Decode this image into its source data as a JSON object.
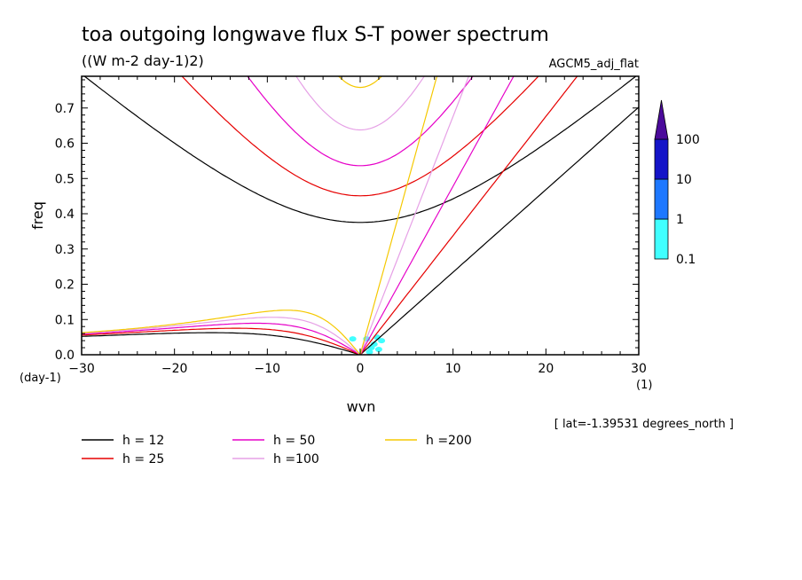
{
  "chart_data": {
    "type": "line",
    "title": "toa outgoing longwave flux S-T power spectrum",
    "subtitle": "((W m-2 day-1)2)",
    "model_label": "AGCM5_adj_flat",
    "xlabel": "wvn",
    "ylabel": "freq",
    "x_unit_label": "(1)",
    "y_unit_label": "(day-1)",
    "xlim": [
      -30,
      30
    ],
    "ylim": [
      0,
      0.79
    ],
    "x_ticks": [
      "-30",
      "-20",
      "-10",
      "0",
      "10",
      "20",
      "30"
    ],
    "y_ticks": [
      "0.0",
      "0.1",
      "0.2",
      "0.3",
      "0.4",
      "0.5",
      "0.6",
      "0.7"
    ],
    "annotation": "[ lat=-1.39531 degrees_north ]",
    "grid": false,
    "legend_position": "bottom-left",
    "series": [
      {
        "name": "h = 12",
        "color": "#000000",
        "equivalent_depth": 12
      },
      {
        "name": "h = 25",
        "color": "#e60000",
        "equivalent_depth": 25
      },
      {
        "name": "h = 50",
        "color": "#e600c8",
        "equivalent_depth": 50
      },
      {
        "name": "h =100",
        "color": "#e6a0e6",
        "equivalent_depth": 100
      },
      {
        "name": "h =200",
        "color": "#f5c800",
        "equivalent_depth": 200
      }
    ],
    "colorbar": {
      "labels": [
        "0.1",
        "1",
        "10",
        "100"
      ],
      "colors": [
        "#40ffff",
        "#1e78ff",
        "#1414c8",
        "#4b0a9b"
      ],
      "extend": "max"
    },
    "shaded_spots": [
      {
        "x": 1.2,
        "y": 0.02
      },
      {
        "x": 1.5,
        "y": 0.03
      },
      {
        "x": 2.0,
        "y": 0.015
      },
      {
        "x": 0.7,
        "y": 0.045
      },
      {
        "x": 1.8,
        "y": 0.05
      },
      {
        "x": -0.8,
        "y": 0.045
      },
      {
        "x": 1.0,
        "y": 0.008
      },
      {
        "x": 2.3,
        "y": 0.04
      }
    ]
  }
}
